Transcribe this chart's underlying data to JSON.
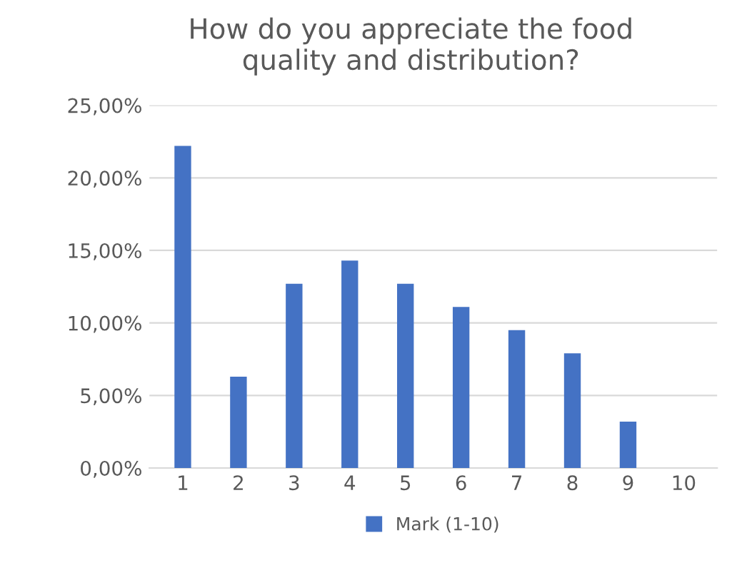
{
  "chart_data": {
    "type": "bar",
    "title": "How do you appreciate the food\nquality and distribution?",
    "categories": [
      "1",
      "2",
      "3",
      "4",
      "5",
      "6",
      "7",
      "8",
      "9",
      "10"
    ],
    "series": [
      {
        "name": "Mark (1-10)",
        "color": "#4472c4",
        "values": [
          22.2,
          6.3,
          12.7,
          14.3,
          12.7,
          11.1,
          9.5,
          7.9,
          3.2,
          0
        ]
      }
    ],
    "ylim": [
      0,
      25
    ],
    "yticks": [
      {
        "value": 0,
        "label": "0,00%"
      },
      {
        "value": 5,
        "label": "5,00%"
      },
      {
        "value": 10,
        "label": "10,00%"
      },
      {
        "value": 15,
        "label": "15,00%"
      },
      {
        "value": 20,
        "label": "20,00%"
      },
      {
        "value": 25,
        "label": "25,00%"
      }
    ],
    "grid": "y",
    "legend": "bottom"
  }
}
